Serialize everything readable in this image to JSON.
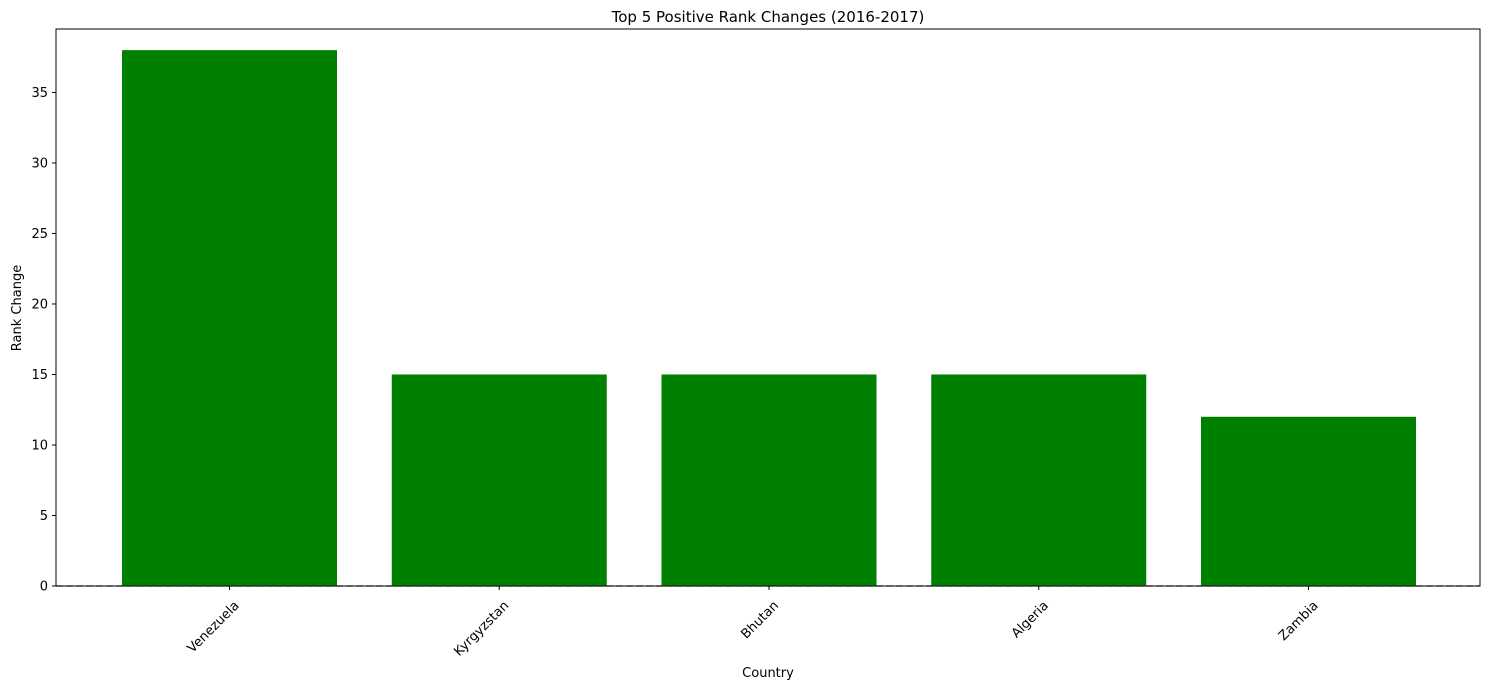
{
  "chart_data": {
    "type": "bar",
    "title": "Top 5 Positive Rank Changes (2016-2017)",
    "xlabel": "Country",
    "ylabel": "Rank Change",
    "categories": [
      "Venezuela",
      "Kyrgyzstan",
      "Bhutan",
      "Algeria",
      "Zambia"
    ],
    "values": [
      38,
      15,
      15,
      15,
      12
    ],
    "ylim": [
      0,
      39.5
    ],
    "yticks": [
      0,
      5,
      10,
      15,
      20,
      25,
      30,
      35
    ],
    "bar_color": "#008000",
    "reference_line": {
      "y": 0,
      "style": "dashed",
      "color": "#808080"
    },
    "grid": false,
    "x_tick_rotation_deg": 45
  }
}
